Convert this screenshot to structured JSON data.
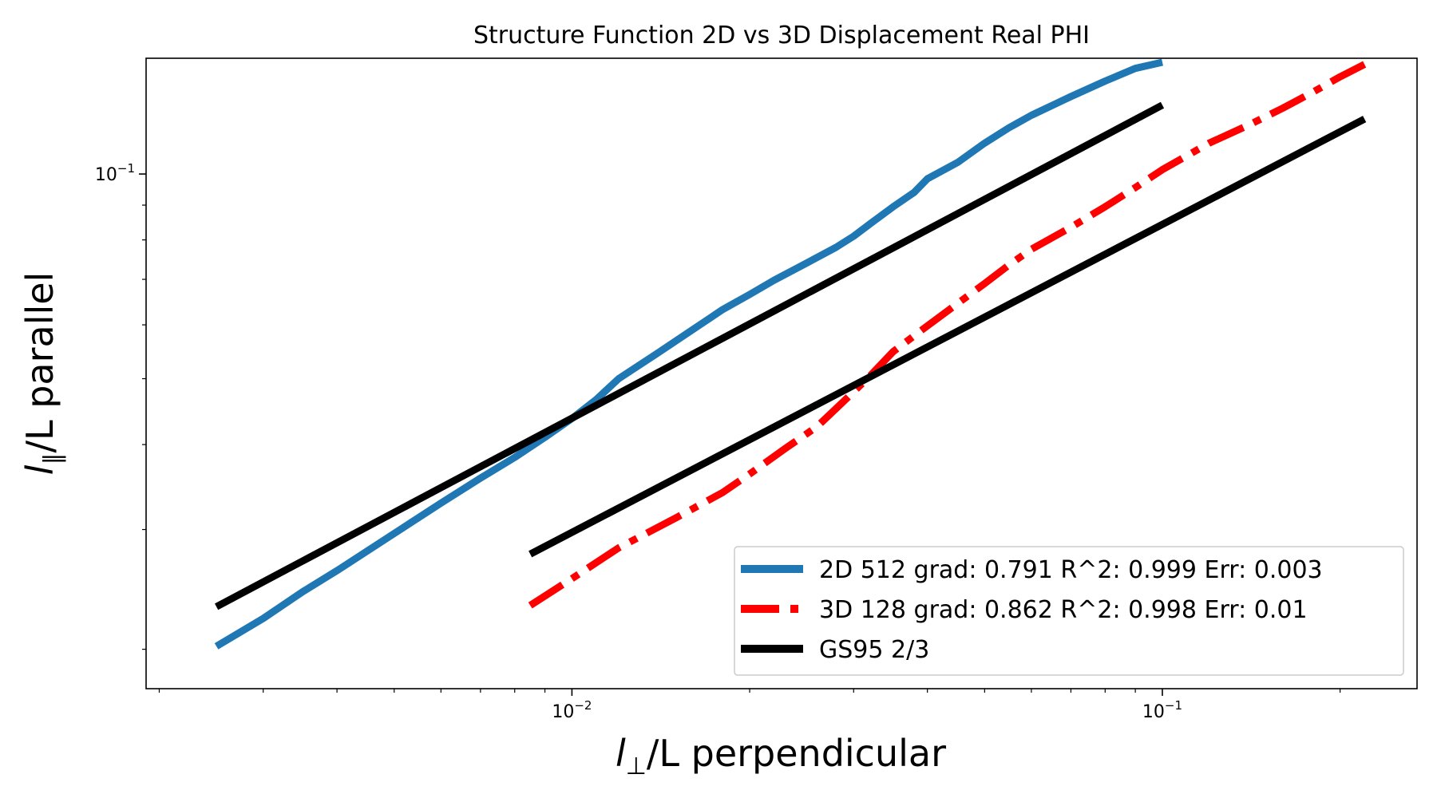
{
  "chart_data": {
    "type": "line",
    "title": "Structure Function 2D vs 3D Displacement Real PHI",
    "xlabel": {
      "symbol": "l",
      "subscript": "⊥",
      "suffix": "/L perpendicular"
    },
    "ylabel": {
      "symbol": "l",
      "subscript": "∥",
      "suffix": "/L parallel"
    },
    "xscale": "log",
    "yscale": "log",
    "xlim": [
      0.0019,
      0.27
    ],
    "ylim": [
      0.0175,
      0.148
    ],
    "x_ticks": [
      {
        "value": 0.01,
        "label": "10",
        "exp": "−2"
      },
      {
        "value": 0.1,
        "label": "10",
        "exp": "−1"
      }
    ],
    "y_ticks": [
      {
        "value": 0.1,
        "label": "10",
        "exp": "−1"
      }
    ],
    "grid": false,
    "legend_position": "lower-right",
    "series": [
      {
        "name": "2D 512 grad: 0.791 R^2: 0.999  Err: 0.003",
        "color": "#1f77b4",
        "style": "solid",
        "x": [
          0.0025,
          0.003,
          0.0035,
          0.004,
          0.005,
          0.006,
          0.007,
          0.008,
          0.009,
          0.01,
          0.011,
          0.012,
          0.014,
          0.016,
          0.018,
          0.02,
          0.022,
          0.025,
          0.028,
          0.03,
          0.032,
          0.035,
          0.038,
          0.04,
          0.045,
          0.05,
          0.055,
          0.06,
          0.07,
          0.08,
          0.09,
          0.1
        ],
        "y": [
          0.0202,
          0.0222,
          0.0243,
          0.0261,
          0.0296,
          0.0328,
          0.0357,
          0.0383,
          0.041,
          0.0437,
          0.0466,
          0.05,
          0.0546,
          0.059,
          0.0632,
          0.0665,
          0.0698,
          0.074,
          0.078,
          0.081,
          0.0845,
          0.0895,
          0.094,
          0.0984,
          0.104,
          0.111,
          0.117,
          0.122,
          0.13,
          0.137,
          0.143,
          0.146
        ]
      },
      {
        "name": "3D 128 grad: 0.862 R^2: 0.998  Err: 0.01",
        "color": "#ff0000",
        "style": "dashdot",
        "x": [
          0.0085,
          0.01,
          0.012,
          0.015,
          0.018,
          0.02,
          0.023,
          0.026,
          0.029,
          0.032,
          0.035,
          0.04,
          0.045,
          0.05,
          0.055,
          0.06,
          0.07,
          0.08,
          0.09,
          0.1,
          0.12,
          0.14,
          0.16,
          0.18,
          0.2,
          0.22
        ],
        "y": [
          0.0232,
          0.0254,
          0.0282,
          0.0312,
          0.034,
          0.0362,
          0.0395,
          0.0425,
          0.0465,
          0.0505,
          0.0548,
          0.0598,
          0.0645,
          0.069,
          0.0735,
          0.0775,
          0.0835,
          0.0895,
          0.0955,
          0.1015,
          0.111,
          0.118,
          0.125,
          0.132,
          0.139,
          0.145
        ]
      },
      {
        "name": "GS95 2/3",
        "color": "#000000",
        "style": "solid",
        "x": [
          0.0025,
          0.1
        ],
        "y": [
          0.0231,
          0.1263
        ]
      },
      {
        "name": "",
        "color": "#000000",
        "style": "solid",
        "x": [
          0.0085,
          0.22
        ],
        "y": [
          0.0276,
          0.1205
        ]
      }
    ]
  }
}
